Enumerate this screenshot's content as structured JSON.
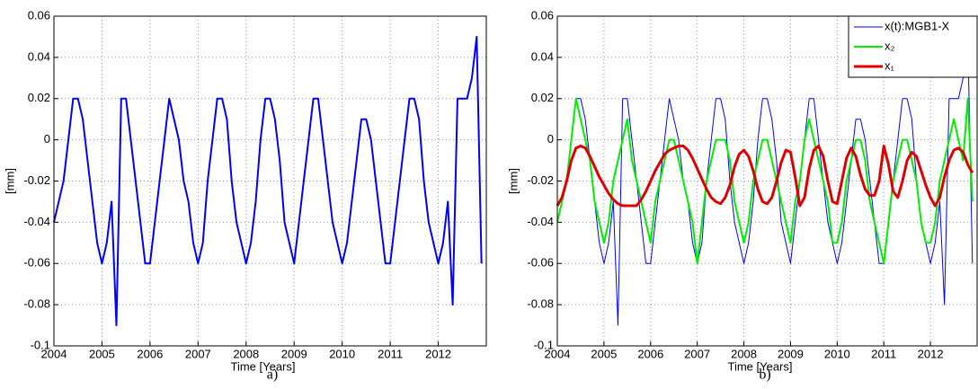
{
  "chart_data": [
    {
      "type": "line",
      "caption": "a)",
      "xlabel": "Time [Years]",
      "ylabel": "[mm]",
      "xlim": [
        2004,
        2013
      ],
      "xticks": [
        2004,
        2005,
        2006,
        2007,
        2008,
        2009,
        2010,
        2011,
        2012
      ],
      "ylim": [
        -0.1,
        0.06
      ],
      "yticks": [
        -0.1,
        -0.08,
        -0.06,
        -0.04,
        -0.02,
        0,
        0.02,
        0.04,
        0.06
      ],
      "grid": true,
      "color": "#0000ff",
      "x": [
        2004.0,
        2004.1,
        2004.2,
        2004.3,
        2004.4,
        2004.5,
        2004.6,
        2004.7,
        2004.8,
        2004.9,
        2005.0,
        2005.1,
        2005.2,
        2005.3,
        2005.4,
        2005.5,
        2005.6,
        2005.7,
        2005.8,
        2005.9,
        2006.0,
        2006.1,
        2006.2,
        2006.3,
        2006.4,
        2006.5,
        2006.6,
        2006.7,
        2006.8,
        2006.9,
        2007.0,
        2007.1,
        2007.2,
        2007.3,
        2007.4,
        2007.5,
        2007.6,
        2007.7,
        2007.8,
        2007.9,
        2008.0,
        2008.1,
        2008.2,
        2008.3,
        2008.4,
        2008.5,
        2008.6,
        2008.7,
        2008.8,
        2008.9,
        2009.0,
        2009.1,
        2009.2,
        2009.3,
        2009.4,
        2009.5,
        2009.6,
        2009.7,
        2009.8,
        2009.9,
        2010.0,
        2010.1,
        2010.2,
        2010.3,
        2010.4,
        2010.5,
        2010.6,
        2010.7,
        2010.8,
        2010.9,
        2011.0,
        2011.1,
        2011.2,
        2011.3,
        2011.4,
        2011.5,
        2011.6,
        2011.7,
        2011.8,
        2011.9,
        2012.0,
        2012.1,
        2012.2,
        2012.3,
        2012.4,
        2012.5,
        2012.6,
        2012.7,
        2012.8,
        2012.9
      ],
      "values": [
        -0.04,
        -0.03,
        -0.02,
        0,
        0.02,
        0.02,
        0.01,
        -0.01,
        -0.03,
        -0.05,
        -0.06,
        -0.05,
        -0.03,
        -0.09,
        0.02,
        0.02,
        0,
        -0.02,
        -0.04,
        -0.06,
        -0.06,
        -0.04,
        -0.02,
        0,
        0.02,
        0.01,
        0,
        -0.02,
        -0.03,
        -0.05,
        -0.06,
        -0.05,
        -0.02,
        0,
        0.02,
        0.02,
        0.01,
        -0.02,
        -0.04,
        -0.05,
        -0.06,
        -0.05,
        -0.03,
        0,
        0.02,
        0.02,
        0.01,
        -0.01,
        -0.04,
        -0.05,
        -0.06,
        -0.04,
        -0.02,
        0,
        0.02,
        0.02,
        0,
        -0.02,
        -0.04,
        -0.05,
        -0.06,
        -0.05,
        -0.03,
        -0.01,
        0.01,
        0.01,
        0,
        -0.02,
        -0.04,
        -0.06,
        -0.06,
        -0.04,
        -0.02,
        0,
        0.02,
        0.02,
        0.01,
        -0.02,
        -0.04,
        -0.05,
        -0.06,
        -0.05,
        -0.03,
        -0.08,
        0.02,
        0.02,
        0.02,
        0.03,
        0.05,
        -0.06
      ]
    },
    {
      "type": "line",
      "caption": "b)",
      "xlabel": "Time [Years]",
      "ylabel": "[mm]",
      "xlim": [
        2004,
        2013
      ],
      "xticks": [
        2004,
        2005,
        2006,
        2007,
        2008,
        2009,
        2010,
        2011,
        2012
      ],
      "ylim": [
        -0.1,
        0.06
      ],
      "yticks": [
        -0.1,
        -0.08,
        -0.06,
        -0.04,
        -0.02,
        0,
        0.02,
        0.04,
        0.06
      ],
      "grid": true,
      "legend": "upper right",
      "x": [
        2004.0,
        2004.1,
        2004.2,
        2004.3,
        2004.4,
        2004.5,
        2004.6,
        2004.7,
        2004.8,
        2004.9,
        2005.0,
        2005.1,
        2005.2,
        2005.3,
        2005.4,
        2005.5,
        2005.6,
        2005.7,
        2005.8,
        2005.9,
        2006.0,
        2006.1,
        2006.2,
        2006.3,
        2006.4,
        2006.5,
        2006.6,
        2006.7,
        2006.8,
        2006.9,
        2007.0,
        2007.1,
        2007.2,
        2007.3,
        2007.4,
        2007.5,
        2007.6,
        2007.7,
        2007.8,
        2007.9,
        2008.0,
        2008.1,
        2008.2,
        2008.3,
        2008.4,
        2008.5,
        2008.6,
        2008.7,
        2008.8,
        2008.9,
        2009.0,
        2009.1,
        2009.2,
        2009.3,
        2009.4,
        2009.5,
        2009.6,
        2009.7,
        2009.8,
        2009.9,
        2010.0,
        2010.1,
        2010.2,
        2010.3,
        2010.4,
        2010.5,
        2010.6,
        2010.7,
        2010.8,
        2010.9,
        2011.0,
        2011.1,
        2011.2,
        2011.3,
        2011.4,
        2011.5,
        2011.6,
        2011.7,
        2011.8,
        2011.9,
        2012.0,
        2012.1,
        2012.2,
        2012.3,
        2012.4,
        2012.5,
        2012.6,
        2012.7,
        2012.8,
        2012.9
      ],
      "series": [
        {
          "name": "x(t):MGB1-X",
          "color": "#0000ff",
          "values": [
            -0.04,
            -0.03,
            -0.02,
            0,
            0.02,
            0.02,
            0.01,
            -0.01,
            -0.03,
            -0.05,
            -0.06,
            -0.05,
            -0.03,
            -0.09,
            0.02,
            0.02,
            0,
            -0.02,
            -0.04,
            -0.06,
            -0.06,
            -0.04,
            -0.02,
            0,
            0.02,
            0.01,
            0,
            -0.02,
            -0.03,
            -0.05,
            -0.06,
            -0.05,
            -0.02,
            0,
            0.02,
            0.02,
            0.01,
            -0.02,
            -0.04,
            -0.05,
            -0.06,
            -0.05,
            -0.03,
            0,
            0.02,
            0.02,
            0.01,
            -0.01,
            -0.04,
            -0.05,
            -0.06,
            -0.04,
            -0.02,
            0,
            0.02,
            0.02,
            0,
            -0.02,
            -0.04,
            -0.05,
            -0.06,
            -0.05,
            -0.03,
            -0.01,
            0.01,
            0.01,
            0,
            -0.02,
            -0.04,
            -0.06,
            -0.06,
            -0.04,
            -0.02,
            0,
            0.02,
            0.02,
            0.01,
            -0.02,
            -0.04,
            -0.05,
            -0.06,
            -0.05,
            -0.03,
            -0.08,
            0.02,
            0.02,
            0.02,
            0.03,
            0.05,
            -0.06
          ]
        },
        {
          "name": "x₂",
          "color": "#00ee00",
          "values": [
            -0.04,
            -0.03,
            -0.02,
            0.0,
            0.02,
            0.01,
            0.0,
            -0.01,
            -0.03,
            -0.04,
            -0.05,
            -0.04,
            -0.02,
            -0.01,
            0.0,
            0.01,
            -0.01,
            -0.02,
            -0.03,
            -0.04,
            -0.05,
            -0.03,
            -0.02,
            -0.01,
            0.0,
            0.0,
            -0.01,
            -0.02,
            -0.03,
            -0.04,
            -0.06,
            -0.04,
            -0.02,
            -0.01,
            0.0,
            0.0,
            0.0,
            -0.01,
            -0.03,
            -0.04,
            -0.05,
            -0.04,
            -0.02,
            -0.01,
            0.0,
            0.0,
            -0.01,
            -0.02,
            -0.03,
            -0.04,
            -0.05,
            -0.03,
            -0.02,
            0.0,
            0.01,
            0.0,
            -0.01,
            -0.02,
            -0.03,
            -0.05,
            -0.05,
            -0.04,
            -0.02,
            -0.01,
            0.0,
            0.0,
            -0.01,
            -0.03,
            -0.04,
            -0.05,
            -0.06,
            -0.04,
            -0.02,
            -0.01,
            0.0,
            0.0,
            -0.01,
            -0.02,
            -0.04,
            -0.05,
            -0.05,
            -0.04,
            -0.02,
            -0.01,
            0.0,
            0.01,
            0.0,
            -0.01,
            0.02,
            -0.03
          ]
        },
        {
          "name": "x₁",
          "color": "#dd0000",
          "values": [
            -0.032,
            -0.028,
            -0.02,
            -0.01,
            -0.004,
            -0.003,
            -0.004,
            -0.008,
            -0.013,
            -0.018,
            -0.022,
            -0.026,
            -0.029,
            -0.031,
            -0.032,
            -0.032,
            -0.032,
            -0.032,
            -0.029,
            -0.025,
            -0.02,
            -0.015,
            -0.011,
            -0.007,
            -0.005,
            -0.004,
            -0.003,
            -0.003,
            -0.005,
            -0.009,
            -0.014,
            -0.019,
            -0.024,
            -0.028,
            -0.03,
            -0.031,
            -0.028,
            -0.022,
            -0.013,
            -0.007,
            -0.005,
            -0.008,
            -0.015,
            -0.024,
            -0.03,
            -0.031,
            -0.028,
            -0.02,
            -0.011,
            -0.005,
            -0.006,
            -0.018,
            -0.032,
            -0.028,
            -0.014,
            -0.005,
            -0.003,
            -0.008,
            -0.02,
            -0.03,
            -0.031,
            -0.02,
            -0.009,
            -0.004,
            -0.008,
            -0.017,
            -0.024,
            -0.027,
            -0.027,
            -0.02,
            -0.003,
            -0.012,
            -0.025,
            -0.028,
            -0.02,
            -0.01,
            -0.006,
            -0.008,
            -0.015,
            -0.022,
            -0.028,
            -0.032,
            -0.028,
            -0.018,
            -0.01,
            -0.005,
            -0.004,
            -0.006,
            -0.012,
            -0.016
          ]
        }
      ]
    }
  ]
}
